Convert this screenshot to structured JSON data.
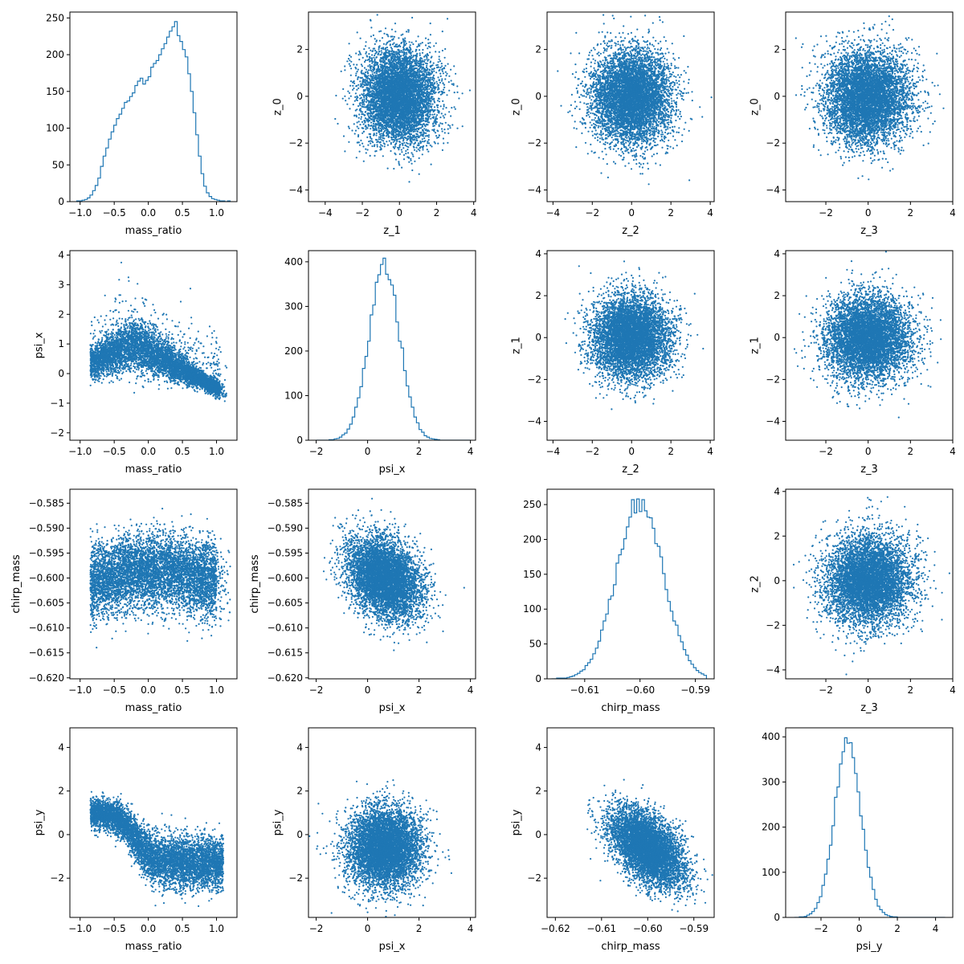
{
  "colors": {
    "series": "#1f77b4",
    "axes": "#000000",
    "background": "#ffffff"
  },
  "chart_data": [
    {
      "panel": "row1-col1",
      "type": "histogram",
      "xlabel": "mass_ratio",
      "ylabel": "",
      "xlim": [
        -1.15,
        1.3
      ],
      "ylim": [
        0,
        258
      ],
      "xticks": [
        -1.0,
        -0.5,
        0.0,
        0.5,
        1.0
      ],
      "xtick_labels": [
        "−1.0",
        "−0.5",
        "0.0",
        "0.5",
        "1.0"
      ],
      "yticks": [
        0,
        50,
        100,
        150,
        200,
        250
      ],
      "ytick_labels": [
        "0",
        "50",
        "100",
        "150",
        "200",
        "250"
      ],
      "bin_range": [
        -1.05,
        1.2
      ],
      "counts": [
        1,
        1,
        2,
        3,
        5,
        9,
        15,
        22,
        32,
        48,
        62,
        73,
        85,
        95,
        104,
        113,
        119,
        127,
        135,
        137,
        143,
        148,
        158,
        164,
        168,
        160,
        165,
        170,
        183,
        188,
        192,
        200,
        208,
        215,
        224,
        232,
        238,
        245,
        226,
        218,
        207,
        197,
        174,
        150,
        121,
        91,
        62,
        38,
        21,
        12,
        7,
        4,
        3,
        2,
        1,
        1,
        0,
        1
      ]
    },
    {
      "panel": "row1-col2",
      "type": "scatter",
      "xlabel": "z_1",
      "ylabel": "z_0",
      "xlim": [
        -4.9,
        4.1
      ],
      "ylim": [
        -4.5,
        3.6
      ],
      "xticks": [
        -4,
        -2,
        0,
        2,
        4
      ],
      "xtick_labels": [
        "−4",
        "−2",
        "0",
        "2",
        "4"
      ],
      "yticks": [
        -4,
        -2,
        0,
        2
      ],
      "ytick_labels": [
        "−4",
        "−2",
        "0",
        "2"
      ],
      "distribution": {
        "x_mean": 0.0,
        "x_sd": 1.0,
        "y_mean": 0.0,
        "y_sd": 1.0,
        "n": 6000
      }
    },
    {
      "panel": "row1-col3",
      "type": "scatter",
      "xlabel": "z_2",
      "ylabel": "z_0",
      "xlim": [
        -4.3,
        4.2
      ],
      "ylim": [
        -4.5,
        3.6
      ],
      "xticks": [
        -4,
        -2,
        0,
        2,
        4
      ],
      "xtick_labels": [
        "−4",
        "−2",
        "0",
        "2",
        "4"
      ],
      "yticks": [
        -4,
        -2,
        0,
        2
      ],
      "ytick_labels": [
        "−4",
        "−2",
        "0",
        "2"
      ],
      "distribution": {
        "x_mean": 0.0,
        "x_sd": 1.0,
        "y_mean": 0.0,
        "y_sd": 1.0,
        "n": 6000
      }
    },
    {
      "panel": "row1-col4",
      "type": "scatter",
      "xlabel": "z_3",
      "ylabel": "z_0",
      "xlim": [
        -3.9,
        4.0
      ],
      "ylim": [
        -4.5,
        3.6
      ],
      "xticks": [
        -2,
        0,
        2,
        4
      ],
      "xtick_labels": [
        "−2",
        "0",
        "2",
        "4"
      ],
      "yticks": [
        -4,
        -2,
        0,
        2
      ],
      "ytick_labels": [
        "−4",
        "−2",
        "0",
        "2"
      ],
      "distribution": {
        "x_mean": 0.0,
        "x_sd": 1.0,
        "y_mean": 0.0,
        "y_sd": 1.0,
        "n": 6000
      }
    },
    {
      "panel": "row2-col1",
      "type": "scatter",
      "xlabel": "mass_ratio",
      "ylabel": "psi_x",
      "xlim": [
        -1.15,
        1.3
      ],
      "ylim": [
        -2.25,
        4.15
      ],
      "xticks": [
        -1.0,
        -0.5,
        0.0,
        0.5,
        1.0
      ],
      "xtick_labels": [
        "−1.0",
        "−0.5",
        "0.0",
        "0.5",
        "1.0"
      ],
      "yticks": [
        -2,
        -1,
        0,
        1,
        2,
        3,
        4
      ],
      "ytick_labels": [
        "−2",
        "−1",
        "0",
        "1",
        "2",
        "3",
        "4"
      ],
      "distribution": {
        "pattern": "peaked-hump",
        "x_range": [
          -0.9,
          1.2
        ],
        "peak_x": -0.2,
        "peak_y": 1.0,
        "n": 6000
      }
    },
    {
      "panel": "row2-col2",
      "type": "histogram",
      "xlabel": "psi_x",
      "ylabel": "",
      "xlim": [
        -2.3,
        4.2
      ],
      "ylim": [
        0,
        425
      ],
      "xticks": [
        -2,
        0,
        2,
        4
      ],
      "xtick_labels": [
        "−2",
        "0",
        "2",
        "4"
      ],
      "yticks": [
        0,
        100,
        200,
        300,
        400
      ],
      "ytick_labels": [
        "0",
        "100",
        "200",
        "300",
        "400"
      ],
      "bin_range": [
        -2.0,
        4.0
      ],
      "mean": 0.65,
      "sd": 0.6,
      "peak": 408
    },
    {
      "panel": "row2-col3",
      "type": "scatter",
      "xlabel": "z_2",
      "ylabel": "z_1",
      "xlim": [
        -4.3,
        4.2
      ],
      "ylim": [
        -4.9,
        4.15
      ],
      "xticks": [
        -4,
        -2,
        0,
        2,
        4
      ],
      "xtick_labels": [
        "−4",
        "−2",
        "0",
        "2",
        "4"
      ],
      "yticks": [
        -4,
        -2,
        0,
        2,
        4
      ],
      "ytick_labels": [
        "−4",
        "−2",
        "0",
        "2",
        "4"
      ],
      "distribution": {
        "x_mean": 0.0,
        "x_sd": 1.0,
        "y_mean": 0.0,
        "y_sd": 1.0,
        "n": 6000
      }
    },
    {
      "panel": "row2-col4",
      "type": "scatter",
      "xlabel": "z_3",
      "ylabel": "z_1",
      "xlim": [
        -3.9,
        4.0
      ],
      "ylim": [
        -4.9,
        4.15
      ],
      "xticks": [
        -2,
        0,
        2,
        4
      ],
      "xtick_labels": [
        "−2",
        "0",
        "2",
        "4"
      ],
      "yticks": [
        -4,
        -2,
        0,
        2,
        4
      ],
      "ytick_labels": [
        "−4",
        "−2",
        "0",
        "2",
        "4"
      ],
      "distribution": {
        "x_mean": 0.0,
        "x_sd": 1.0,
        "y_mean": 0.0,
        "y_sd": 1.0,
        "n": 6000
      }
    },
    {
      "panel": "row3-col1",
      "type": "scatter",
      "xlabel": "mass_ratio",
      "ylabel": "chirp_mass",
      "xlim": [
        -1.15,
        1.3
      ],
      "ylim": [
        -0.6202,
        -0.5822
      ],
      "xticks": [
        -1.0,
        -0.5,
        0.0,
        0.5,
        1.0
      ],
      "xtick_labels": [
        "−1.0",
        "−0.5",
        "0.0",
        "0.5",
        "1.0"
      ],
      "yticks": [
        -0.62,
        -0.615,
        -0.61,
        -0.605,
        -0.6,
        -0.595,
        -0.59,
        -0.585
      ],
      "ytick_labels": [
        "−0.620",
        "−0.615",
        "−0.610",
        "−0.605",
        "−0.600",
        "−0.595",
        "−0.590",
        "−0.585"
      ],
      "distribution": {
        "pattern": "rounded-blob",
        "x_range": [
          -0.9,
          1.2
        ],
        "y_mean": -0.6,
        "y_sd": 0.004,
        "n": 6000
      }
    },
    {
      "panel": "row3-col2",
      "type": "scatter",
      "xlabel": "psi_x",
      "ylabel": "chirp_mass",
      "xlim": [
        -2.3,
        4.2
      ],
      "ylim": [
        -0.6202,
        -0.5822
      ],
      "xticks": [
        -2,
        0,
        2,
        4
      ],
      "xtick_labels": [
        "−2",
        "0",
        "2",
        "4"
      ],
      "yticks": [
        -0.62,
        -0.615,
        -0.61,
        -0.605,
        -0.6,
        -0.595,
        -0.59,
        -0.585
      ],
      "ytick_labels": [
        "−0.620",
        "−0.615",
        "−0.610",
        "−0.605",
        "−0.600",
        "−0.595",
        "−0.590",
        "−0.585"
      ],
      "distribution": {
        "x_mean": 0.65,
        "x_sd": 0.7,
        "y_mean": -0.6,
        "y_sd": 0.004,
        "correlation": -0.3,
        "n": 6000
      }
    },
    {
      "panel": "row3-col3",
      "type": "histogram",
      "xlabel": "chirp_mass",
      "ylabel": "",
      "xlim": [
        -0.6168,
        -0.5866
      ],
      "ylim": [
        0,
        272
      ],
      "xticks": [
        -0.61,
        -0.6,
        -0.59
      ],
      "xtick_labels": [
        "−0.61",
        "−0.60",
        "−0.59"
      ],
      "yticks": [
        0,
        50,
        100,
        150,
        200,
        250
      ],
      "ytick_labels": [
        "0",
        "50",
        "100",
        "150",
        "200",
        "250"
      ],
      "bin_range": [
        -0.616,
        -0.588
      ],
      "mean": -0.6,
      "sd": 0.0042,
      "peak": 258
    },
    {
      "panel": "row3-col4",
      "type": "scatter",
      "xlabel": "z_3",
      "ylabel": "z_2",
      "xlim": [
        -3.9,
        4.0
      ],
      "ylim": [
        -4.4,
        4.1
      ],
      "xticks": [
        -2,
        0,
        2,
        4
      ],
      "xtick_labels": [
        "−2",
        "0",
        "2",
        "4"
      ],
      "yticks": [
        -4,
        -2,
        0,
        2,
        4
      ],
      "ytick_labels": [
        "−4",
        "−2",
        "0",
        "2",
        "4"
      ],
      "distribution": {
        "x_mean": 0.0,
        "x_sd": 1.0,
        "y_mean": 0.0,
        "y_sd": 1.0,
        "n": 6000
      }
    },
    {
      "panel": "row4-col1",
      "type": "scatter",
      "xlabel": "mass_ratio",
      "ylabel": "psi_y",
      "xlim": [
        -1.15,
        1.3
      ],
      "ylim": [
        -3.8,
        4.9
      ],
      "xticks": [
        -1.0,
        -0.5,
        0.0,
        0.5,
        1.0
      ],
      "xtick_labels": [
        "−1.0",
        "−0.5",
        "0.0",
        "0.5",
        "1.0"
      ],
      "yticks": [
        -2,
        0,
        2,
        4
      ],
      "ytick_labels": [
        "−2",
        "0",
        "2",
        "4"
      ],
      "distribution": {
        "pattern": "descending-sigmoid",
        "x_range": [
          -0.9,
          1.2
        ],
        "upper_y": 1.0,
        "lower_y": -1.3,
        "n": 6000
      }
    },
    {
      "panel": "row4-col2",
      "type": "scatter",
      "xlabel": "psi_x",
      "ylabel": "psi_y",
      "xlim": [
        -2.3,
        4.2
      ],
      "ylim": [
        -3.8,
        4.9
      ],
      "xticks": [
        -2,
        0,
        2,
        4
      ],
      "xtick_labels": [
        "−2",
        "0",
        "2",
        "4"
      ],
      "yticks": [
        -2,
        0,
        2,
        4
      ],
      "ytick_labels": [
        "−2",
        "0",
        "2",
        "4"
      ],
      "distribution": {
        "x_mean": 0.65,
        "x_sd": 0.7,
        "y_mean": -0.6,
        "y_sd": 0.9,
        "n": 6000
      }
    },
    {
      "panel": "row4-col3",
      "type": "scatter",
      "xlabel": "chirp_mass",
      "ylabel": "psi_y",
      "xlim": [
        -0.6218,
        -0.5856
      ],
      "ylim": [
        -3.8,
        4.9
      ],
      "xticks": [
        -0.62,
        -0.61,
        -0.6,
        -0.59
      ],
      "xtick_labels": [
        "−0.62",
        "−0.61",
        "−0.60",
        "−0.59"
      ],
      "yticks": [
        -2,
        0,
        2,
        4
      ],
      "ytick_labels": [
        "−2",
        "0",
        "2",
        "4"
      ],
      "distribution": {
        "x_mean": -0.6,
        "x_sd": 0.004,
        "y_mean": -0.6,
        "y_sd": 0.9,
        "correlation": -0.5,
        "n": 6000
      }
    },
    {
      "panel": "row4-col4",
      "type": "histogram",
      "xlabel": "psi_y",
      "ylabel": "",
      "xlim": [
        -3.85,
        4.9
      ],
      "ylim": [
        0,
        420
      ],
      "xticks": [
        -2,
        0,
        2,
        4
      ],
      "xtick_labels": [
        "−2",
        "0",
        "2",
        "4"
      ],
      "yticks": [
        0,
        100,
        200,
        300,
        400
      ],
      "ytick_labels": [
        "0",
        "100",
        "200",
        "300",
        "400"
      ],
      "bin_range": [
        -3.4,
        4.5
      ],
      "mean": -0.6,
      "sd": 0.7,
      "peak": 398
    }
  ]
}
